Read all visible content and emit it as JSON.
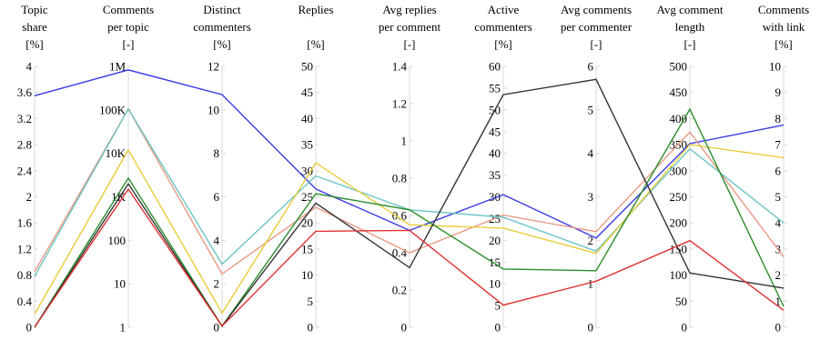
{
  "chart_data": {
    "type": "line",
    "axes": [
      {
        "header": [
          "Topic",
          "share",
          "[%]"
        ],
        "min": 0,
        "max": 4,
        "ticks": [
          "0",
          "0.4",
          "0.8",
          "1.2",
          "1.6",
          "2",
          "2.4",
          "2.8",
          "3.2",
          "3.6",
          "4"
        ],
        "tick_values": [
          0,
          0.4,
          0.8,
          1.2,
          1.6,
          2,
          2.4,
          2.8,
          3.2,
          3.6,
          4
        ],
        "scale": "linear"
      },
      {
        "header": [
          "Comments",
          "per topic",
          "[-]"
        ],
        "min": 1,
        "max": 1000000,
        "ticks": [
          "1",
          "10",
          "100",
          "1K",
          "10K",
          "100K",
          "1M"
        ],
        "tick_values": [
          1,
          10,
          100,
          1000,
          10000,
          100000,
          1000000
        ],
        "scale": "log"
      },
      {
        "header": [
          "Distinct",
          "commenters",
          "[%]"
        ],
        "min": 0,
        "max": 12,
        "ticks": [
          "0",
          "2",
          "4",
          "6",
          "8",
          "10",
          "12"
        ],
        "tick_values": [
          0,
          2,
          4,
          6,
          8,
          10,
          12
        ],
        "scale": "linear"
      },
      {
        "header": [
          "Replies",
          "",
          "[%]"
        ],
        "min": 0,
        "max": 50,
        "ticks": [
          "0",
          "5",
          "10",
          "15",
          "20",
          "25",
          "30",
          "35",
          "40",
          "45",
          "50"
        ],
        "tick_values": [
          0,
          5,
          10,
          15,
          20,
          25,
          30,
          35,
          40,
          45,
          50
        ],
        "scale": "linear"
      },
      {
        "header": [
          "Avg replies",
          "per comment",
          "[-]"
        ],
        "min": 0,
        "max": 1.4,
        "ticks": [
          "0",
          "0.2",
          "0.4",
          "0.6",
          "0.8",
          "1",
          "1.2",
          "1.4"
        ],
        "tick_values": [
          0,
          0.2,
          0.4,
          0.6,
          0.8,
          1,
          1.2,
          1.4
        ],
        "scale": "linear"
      },
      {
        "header": [
          "Active",
          "commenters",
          "[%]"
        ],
        "min": 0,
        "max": 60,
        "ticks": [
          "0",
          "5",
          "10",
          "15",
          "20",
          "25",
          "30",
          "35",
          "40",
          "45",
          "50",
          "55",
          "60"
        ],
        "tick_values": [
          0,
          5,
          10,
          15,
          20,
          25,
          30,
          35,
          40,
          45,
          50,
          55,
          60
        ],
        "scale": "linear"
      },
      {
        "header": [
          "Avg comments",
          "per commenter",
          "[-]"
        ],
        "min": 0,
        "max": 6,
        "ticks": [
          "0",
          "1",
          "2",
          "3",
          "4",
          "5",
          "6"
        ],
        "tick_values": [
          0,
          1,
          2,
          3,
          4,
          5,
          6
        ],
        "scale": "linear"
      },
      {
        "header": [
          "Avg comment",
          "length",
          "[-]"
        ],
        "min": 0,
        "max": 500,
        "ticks": [
          "0",
          "50",
          "100",
          "150",
          "200",
          "250",
          "300",
          "350",
          "400",
          "450",
          "500"
        ],
        "tick_values": [
          0,
          50,
          100,
          150,
          200,
          250,
          300,
          350,
          400,
          450,
          500
        ],
        "scale": "linear"
      },
      {
        "header": [
          "Comments",
          "with link",
          "[%]"
        ],
        "min": 0,
        "max": 10,
        "ticks": [
          "0",
          "1",
          "2",
          "3",
          "4",
          "5",
          "6",
          "7",
          "8",
          "9",
          "10"
        ],
        "tick_values": [
          0,
          1,
          2,
          3,
          4,
          5,
          6,
          7,
          8,
          9,
          10
        ],
        "scale": "linear"
      }
    ],
    "series": [
      {
        "color": "#3b3be6",
        "values": [
          3.55,
          830000,
          10.7,
          26.5,
          0.52,
          30.5,
          2.05,
          352,
          7.75
        ]
      },
      {
        "color": "#e69a82",
        "values": [
          0.85,
          105000,
          2.45,
          23.0,
          0.4,
          25.8,
          2.2,
          374,
          2.7
        ]
      },
      {
        "color": "#6cc4c4",
        "values": [
          0.78,
          105000,
          2.9,
          29.0,
          0.63,
          25.3,
          1.75,
          342,
          4.0
        ]
      },
      {
        "color": "#e8cc3c",
        "values": [
          0.2,
          12000,
          0.65,
          31.5,
          0.55,
          22.8,
          1.7,
          350,
          6.5
        ]
      },
      {
        "color": "#2a8c2a",
        "values": [
          0.0,
          2700,
          0.05,
          25.6,
          0.63,
          13.4,
          1.3,
          418,
          0.8
        ]
      },
      {
        "color": "#333333",
        "values": [
          0.0,
          2000,
          0.05,
          23.8,
          0.32,
          53.5,
          5.7,
          104,
          1.5
        ]
      },
      {
        "color": "#e03232",
        "values": [
          0.0,
          1500,
          0.05,
          18.4,
          0.52,
          5.1,
          1.06,
          166,
          0.65
        ]
      }
    ]
  }
}
